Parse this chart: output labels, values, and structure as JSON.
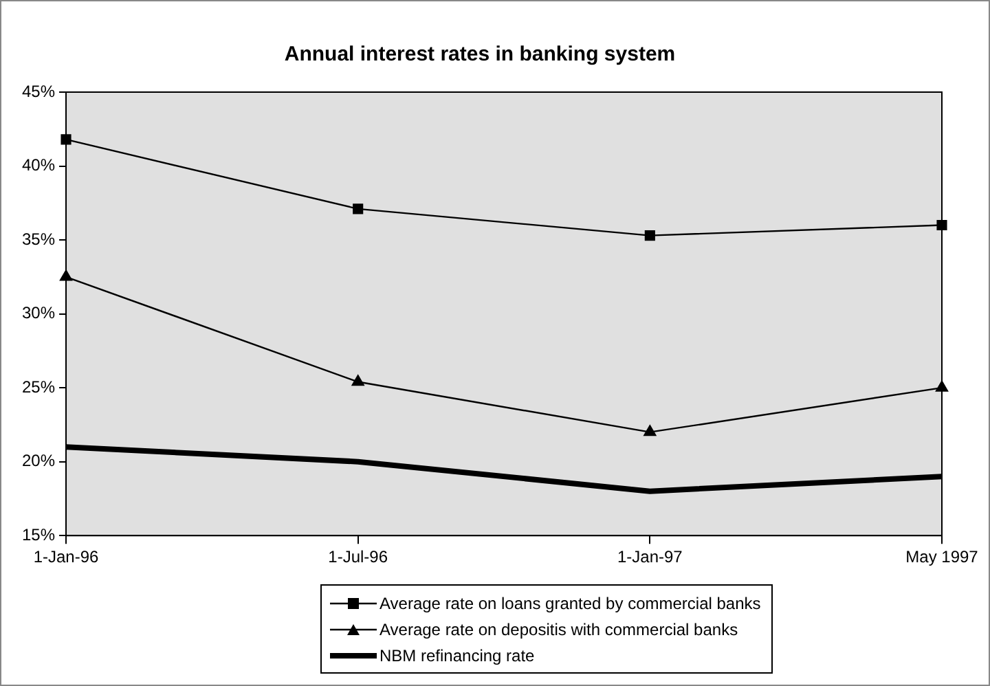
{
  "chart_data": {
    "type": "line",
    "title": "Annual interest rates in banking system",
    "categories": [
      "1-Jan-96",
      "1-Jul-96",
      "1-Jan-97",
      "May 1997"
    ],
    "series": [
      {
        "name": "Average rate on loans granted by commercial banks",
        "color": "#000000",
        "marker": "square",
        "values": [
          41.8,
          37.1,
          35.3,
          36.0
        ]
      },
      {
        "name": "Average rate on depositis with commercial banks",
        "color": "#000000",
        "marker": "triangle",
        "values": [
          32.5,
          25.4,
          22.0,
          25.0
        ]
      },
      {
        "name": "NBM refinancing rate",
        "color": "#000000",
        "marker": "none",
        "values": [
          21,
          20,
          18,
          19
        ]
      }
    ],
    "ylim": [
      15,
      45
    ],
    "yticks": [
      {
        "value": 15,
        "label": "15%"
      },
      {
        "value": 20,
        "label": "20%"
      },
      {
        "value": 25,
        "label": "25%"
      },
      {
        "value": 30,
        "label": "30%"
      },
      {
        "value": 35,
        "label": "35%"
      },
      {
        "value": 40,
        "label": "40%"
      },
      {
        "value": 45,
        "label": "45%"
      }
    ],
    "grid": false,
    "legend": "bottom"
  }
}
